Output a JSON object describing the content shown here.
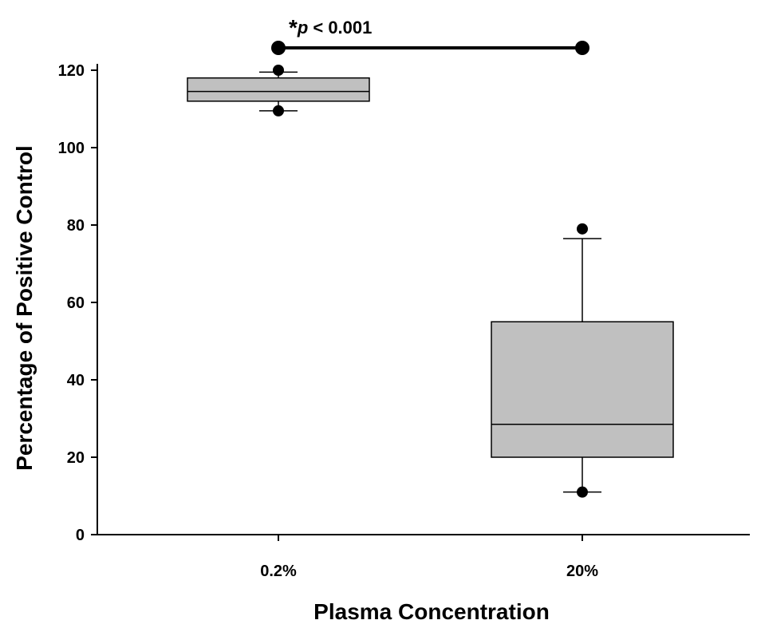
{
  "chart_data": {
    "type": "box",
    "xlabel": "Plasma Concentration",
    "ylabel": "Percentage of Positive Control",
    "ylim": [
      0,
      120
    ],
    "yticks": [
      0,
      20,
      40,
      60,
      80,
      100,
      120
    ],
    "grid": false,
    "categories": [
      "0.2%",
      "20%"
    ],
    "boxes": [
      {
        "category": "0.2%",
        "whisker_low": 109.5,
        "q1": 112,
        "median": 114.5,
        "q3": 118,
        "whisker_high": 119.5,
        "outliers": [
          109.5,
          120
        ]
      },
      {
        "category": "20%",
        "whisker_low": 11,
        "q1": 20,
        "median": 28.5,
        "q3": 55,
        "whisker_high": 76.5,
        "outliers": [
          11,
          79
        ]
      }
    ],
    "significance": {
      "star": "*",
      "p_label": "p",
      "comparator": "< 0.001",
      "between": [
        "0.2%",
        "20%"
      ]
    },
    "colors": {
      "box_fill": "#c0c0c0",
      "line": "#000000"
    }
  }
}
